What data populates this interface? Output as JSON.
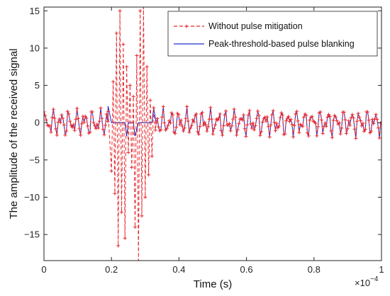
{
  "chart_data": {
    "type": "line",
    "xlabel": "Time (s)",
    "ylabel": "The amplitude of the received signal",
    "x_multiplier_label": "×10",
    "x_multiplier_exponent": "−4",
    "xlim": [
      0,
      1
    ],
    "ylim": [
      -18.5,
      15.5
    ],
    "x_ticks": [
      0,
      0.2,
      0.4,
      0.6,
      0.8,
      1
    ],
    "x_tick_labels": [
      "0",
      "0.2",
      "0.4",
      "0.6",
      "0.8",
      "1"
    ],
    "y_ticks": [
      -15,
      -10,
      -5,
      0,
      5,
      10,
      15
    ],
    "y_tick_labels": [
      "−15",
      "−10",
      "−5",
      "0",
      "5",
      "10",
      "15"
    ],
    "grid": false,
    "legend_position": "top-right",
    "pulse_interval": [
      0.19,
      0.33
    ],
    "series": [
      {
        "name": "Without pulse mitigation",
        "color": "#e8262b",
        "style": "dashed",
        "marker": "plus",
        "x": [
          0.19,
          0.2,
          0.205,
          0.21,
          0.215,
          0.22,
          0.225,
          0.23,
          0.235,
          0.24,
          0.245,
          0.25,
          0.255,
          0.26,
          0.265,
          0.27,
          0.275,
          0.28,
          0.285,
          0.29,
          0.295,
          0.3,
          0.305,
          0.31,
          0.315,
          0.32,
          0.325,
          0.33
        ],
        "y": [
          1.5,
          -6.5,
          5.5,
          -9.5,
          12,
          -16.5,
          15,
          -12,
          10.5,
          -15.5,
          7.5,
          -4,
          5,
          -6,
          3.5,
          -14,
          9,
          -18.5,
          15,
          -12.5,
          15.5,
          -10,
          7.5,
          -7,
          3,
          -4.5,
          2,
          -1
        ]
      },
      {
        "name": "Peak-threshold-based pulse blanking",
        "color": "#2233cc",
        "style": "solid",
        "marker": "none",
        "x": [
          0.19,
          0.2,
          0.21,
          0.22,
          0.23,
          0.24,
          0.245,
          0.25,
          0.26,
          0.265,
          0.27,
          0.28,
          0.29,
          0.3,
          0.31,
          0.32,
          0.325
        ],
        "y": [
          2.2,
          0,
          0,
          0,
          0,
          0,
          -1.8,
          0,
          0,
          0,
          -1.8,
          0,
          0,
          0,
          0,
          0,
          2
        ]
      }
    ]
  }
}
